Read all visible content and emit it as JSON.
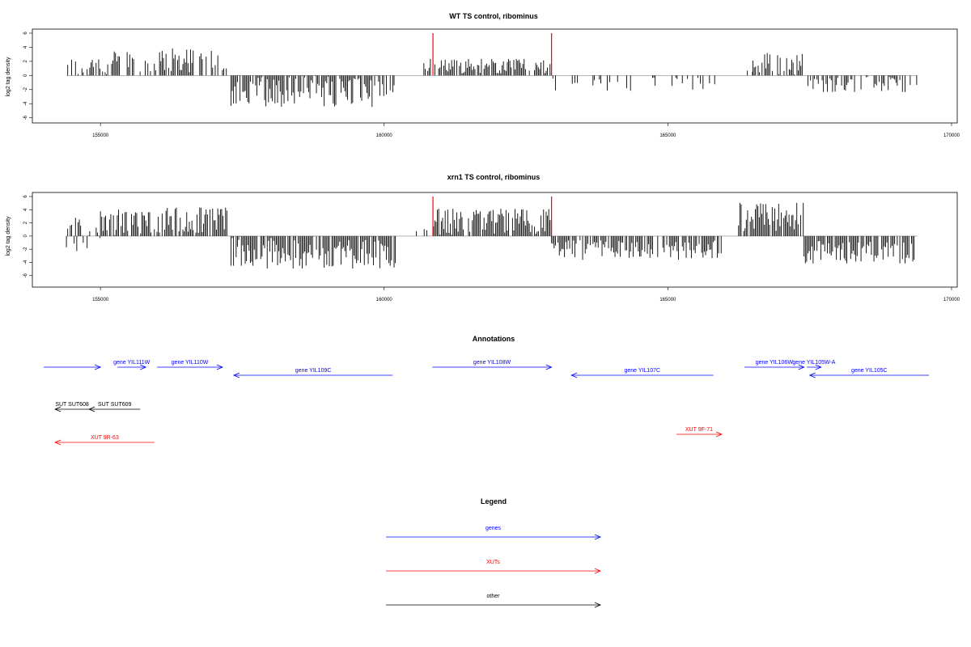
{
  "chart_data": [
    {
      "type": "bar",
      "title": "WT TS control, ribominus",
      "xlabel": "",
      "ylabel": "log2 tag density",
      "xlim": [
        153800,
        170100
      ],
      "ylim": [
        -6.5,
        6
      ],
      "xticks": [
        155000,
        160000,
        165000,
        170000
      ],
      "xtick_labels": [
        "155000",
        "160000",
        "165000",
        "170000"
      ],
      "yticks": [
        6,
        4,
        2,
        0,
        -2,
        -4,
        -6
      ],
      "ytick_labels": [
        "6",
        "4",
        "2",
        "0",
        "-2",
        "-4",
        "-6"
      ],
      "marker_lines": [
        {
          "x": 160860,
          "color": "#ff0000"
        },
        {
          "x": 162950,
          "color": "#ff0000"
        }
      ],
      "segments": [
        {
          "start": 154400,
          "end": 154900,
          "mean": 1.1,
          "amp": 1.5,
          "density": 0.55
        },
        {
          "start": 154900,
          "end": 155900,
          "mean": 1.4,
          "amp": 2.2,
          "density": 0.55
        },
        {
          "start": 155950,
          "end": 157150,
          "mean": 2.1,
          "amp": 1.8,
          "density": 0.7
        },
        {
          "start": 157150,
          "end": 157250,
          "mean": 1.2,
          "amp": 0.6,
          "density": 0.4
        },
        {
          "start": 157300,
          "end": 160200,
          "mean": -2.2,
          "amp": 2.3,
          "density": 0.85
        },
        {
          "start": 160700,
          "end": 160850,
          "mean": 1.3,
          "amp": 0.8,
          "density": 0.6
        },
        {
          "start": 160870,
          "end": 162950,
          "mean": 1.3,
          "amp": 1.0,
          "density": 0.75
        },
        {
          "start": 162950,
          "end": 166150,
          "mean": -1.2,
          "amp": 1.0,
          "density": 0.22
        },
        {
          "start": 166150,
          "end": 166500,
          "mean": 0.6,
          "amp": 0.4,
          "density": 0.1
        },
        {
          "start": 166500,
          "end": 167400,
          "mean": 1.6,
          "amp": 1.7,
          "density": 0.7
        },
        {
          "start": 167400,
          "end": 169400,
          "mean": -1.3,
          "amp": 1.1,
          "density": 0.5
        }
      ]
    },
    {
      "type": "bar",
      "title": "xrn1 TS control, ribominus",
      "xlabel": "",
      "ylabel": "log2 tag density",
      "xlim": [
        153800,
        170100
      ],
      "ylim": [
        -7.5,
        6
      ],
      "xticks": [
        155000,
        160000,
        165000,
        170000
      ],
      "xtick_labels": [
        "155000",
        "160000",
        "165000",
        "170000"
      ],
      "yticks": [
        6,
        4,
        2,
        0,
        -2,
        -4,
        -6
      ],
      "ytick_labels": [
        "6",
        "4",
        "2",
        "0",
        "-2",
        "-4",
        "-6"
      ],
      "marker_lines": [
        {
          "x": 160860,
          "color": "#ff0000"
        },
        {
          "x": 162950,
          "color": "#ff0000"
        }
      ],
      "segments": [
        {
          "start": 154400,
          "end": 155000,
          "mean": 0.2,
          "amp": 2.6,
          "density": 0.8
        },
        {
          "start": 155000,
          "end": 155900,
          "mean": 2.0,
          "amp": 2.2,
          "density": 0.85
        },
        {
          "start": 155950,
          "end": 157250,
          "mean": 2.4,
          "amp": 1.9,
          "density": 0.9
        },
        {
          "start": 157300,
          "end": 160200,
          "mean": -2.5,
          "amp": 2.5,
          "density": 0.9
        },
        {
          "start": 160500,
          "end": 160850,
          "mean": 0.8,
          "amp": 0.9,
          "density": 0.35
        },
        {
          "start": 160870,
          "end": 162950,
          "mean": 2.2,
          "amp": 2.0,
          "density": 0.9
        },
        {
          "start": 162950,
          "end": 166000,
          "mean": -2.0,
          "amp": 1.4,
          "density": 0.85
        },
        {
          "start": 166200,
          "end": 167400,
          "mean": 2.8,
          "amp": 2.2,
          "density": 0.9
        },
        {
          "start": 167400,
          "end": 169400,
          "mean": -2.3,
          "amp": 1.6,
          "density": 0.85
        }
      ]
    }
  ],
  "annotations": {
    "title": "Annotations",
    "xlim": [
      153800,
      170100
    ],
    "features": [
      {
        "label": "",
        "start": 154000,
        "end": 155000,
        "strand": "+",
        "row": 0,
        "kind": "gene"
      },
      {
        "label": "gene YIL111W",
        "start": 155300,
        "end": 155800,
        "strand": "+",
        "row": 0,
        "kind": "gene"
      },
      {
        "label": "gene YIL110W",
        "start": 156000,
        "end": 157150,
        "strand": "+",
        "row": 0,
        "kind": "gene"
      },
      {
        "label": "gene YIL109C",
        "start": 157350,
        "end": 160150,
        "strand": "-",
        "row": 1,
        "kind": "gene"
      },
      {
        "label": "gene YIL108W",
        "start": 160850,
        "end": 162950,
        "strand": "+",
        "row": 0,
        "kind": "gene"
      },
      {
        "label": "gene YIL107C",
        "start": 163300,
        "end": 165800,
        "strand": "-",
        "row": 1,
        "kind": "gene"
      },
      {
        "label": "gene YIL106W",
        "start": 166350,
        "end": 167400,
        "strand": "+",
        "row": 0,
        "kind": "gene"
      },
      {
        "label": "gene YIL105W-A",
        "start": 167450,
        "end": 167700,
        "strand": "+",
        "row": 0,
        "kind": "gene"
      },
      {
        "label": "gene YIL105C",
        "start": 167500,
        "end": 169600,
        "strand": "-",
        "row": 1,
        "kind": "gene"
      },
      {
        "label": "SUT SUT608",
        "start": 154200,
        "end": 154800,
        "strand": "-",
        "row": 2,
        "kind": "other"
      },
      {
        "label": "SUT SUT609",
        "start": 154800,
        "end": 155700,
        "strand": "-",
        "row": 2,
        "kind": "other"
      },
      {
        "label": "XUT 9R-63",
        "start": 154200,
        "end": 155950,
        "strand": "-",
        "row": 4,
        "kind": "xut"
      },
      {
        "label": "XUT 9F-71",
        "start": 165150,
        "end": 165950,
        "strand": "+",
        "row": 3,
        "kind": "xut"
      }
    ]
  },
  "legend": {
    "title": "Legend",
    "items": [
      {
        "label": "genes",
        "kind": "gene"
      },
      {
        "label": "XUTs",
        "kind": "xut"
      },
      {
        "label": "other",
        "kind": "other"
      }
    ]
  },
  "colors": {
    "gene": "#0000ff",
    "xut": "#ff0000",
    "other": "#000000",
    "bar": "#000000",
    "marker": "#ff0000"
  }
}
